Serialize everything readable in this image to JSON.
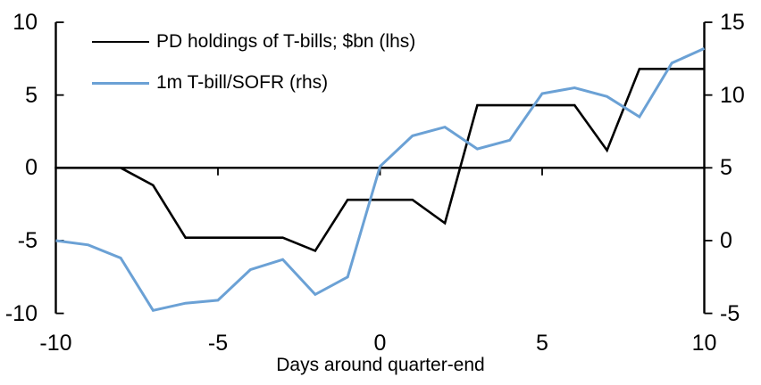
{
  "chart_data": {
    "type": "line",
    "title": "",
    "xlabel": "Days around quarter-end",
    "grid": false,
    "legend_position": "top-left-inside",
    "x": [
      -10,
      -9,
      -8,
      -7,
      -6,
      -5,
      -4,
      -3,
      -2,
      -1,
      0,
      1,
      2,
      3,
      4,
      5,
      6,
      7,
      8,
      9,
      10
    ],
    "series": [
      {
        "name": "PD holdings of T-bills; $bn (lhs)",
        "axis": "left",
        "color": "#000000",
        "values": [
          0,
          0,
          0,
          -1.2,
          -4.8,
          -4.8,
          -4.8,
          -4.8,
          -5.7,
          -2.2,
          -2.2,
          -2.2,
          -3.8,
          4.3,
          4.3,
          4.3,
          4.3,
          1.2,
          6.8,
          6.8,
          6.8
        ]
      },
      {
        "name": "1m T-bill/SOFR (rhs)",
        "axis": "right",
        "color": "#6BA1D5",
        "values": [
          0,
          -0.3,
          -1.2,
          -4.8,
          -4.3,
          -4.1,
          -2.0,
          -1.3,
          -3.7,
          -2.5,
          5.1,
          7.2,
          7.8,
          6.3,
          6.9,
          10.1,
          10.5,
          9.9,
          8.5,
          12.2,
          13.2
        ]
      }
    ],
    "left_axis": {
      "range": [
        -10,
        10
      ],
      "ticks": [
        10,
        5,
        0,
        -5,
        -10
      ]
    },
    "right_axis": {
      "range": [
        -5,
        15
      ],
      "ticks": [
        15,
        10,
        5,
        0,
        -5
      ]
    },
    "x_axis": {
      "range": [
        -10,
        10
      ],
      "ticks": [
        -10,
        -5,
        0,
        5,
        10
      ]
    }
  },
  "colors": {
    "background": "#FFFFFF",
    "text": "#000000",
    "axis": "#000000",
    "series1": "#000000",
    "series2": "#6BA1D5"
  }
}
